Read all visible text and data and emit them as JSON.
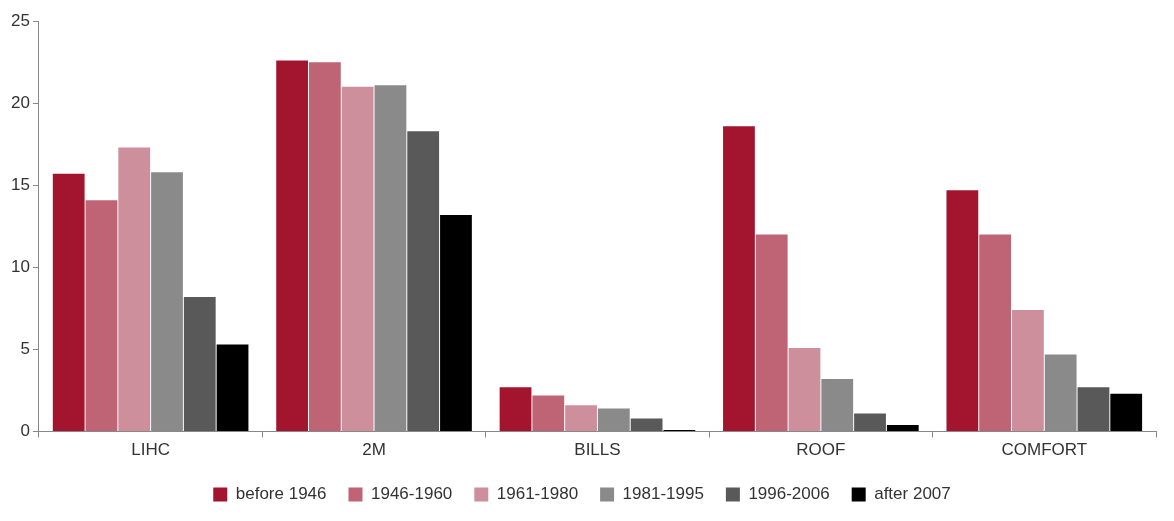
{
  "chart_data": {
    "type": "bar",
    "categories": [
      "LIHC",
      "2M",
      "BILLS",
      "ROOF",
      "COMFORT"
    ],
    "series": [
      {
        "name": "before 1946",
        "color": "#a3152f",
        "values": [
          15.7,
          22.6,
          2.7,
          18.6,
          14.7
        ]
      },
      {
        "name": "1946-1960",
        "color": "#bf6474",
        "values": [
          14.1,
          22.5,
          2.2,
          12.0,
          12.0
        ]
      },
      {
        "name": "1961-1980",
        "color": "#cc8f9b",
        "values": [
          17.3,
          21.0,
          1.6,
          5.1,
          7.4
        ]
      },
      {
        "name": "1981-1995",
        "color": "#8a8a8a",
        "values": [
          15.8,
          21.1,
          1.4,
          3.2,
          4.7
        ]
      },
      {
        "name": "1996-2006",
        "color": "#595959",
        "values": [
          8.2,
          18.3,
          0.8,
          1.1,
          2.7
        ]
      },
      {
        "name": "after 2007",
        "color": "#000000",
        "values": [
          5.3,
          13.2,
          0.1,
          0.4,
          2.3
        ]
      }
    ],
    "ylim": [
      0,
      25
    ],
    "yticks": [
      0,
      5,
      10,
      15,
      20,
      25
    ],
    "grid": false,
    "legend": "bottom"
  }
}
